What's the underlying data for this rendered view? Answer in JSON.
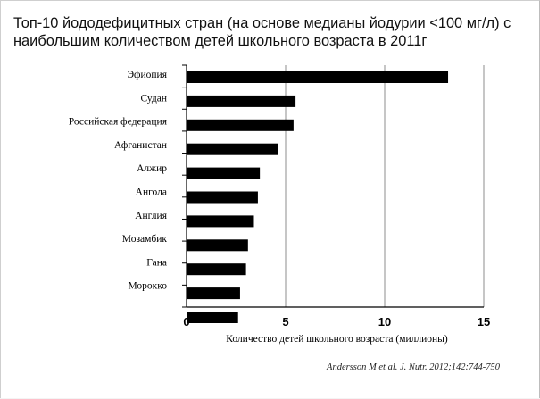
{
  "slide": {
    "title_line1": "Топ-10 йододефицитных стран (на основе медианы йодурии <100 мг/л) с",
    "title_line2": "наибольшим количеством детей школьного возраста в 2011г",
    "source": "Andersson M et al. J. Nutr. 2012;142:744-750"
  },
  "chart_data": {
    "type": "bar",
    "orientation": "horizontal",
    "title": "",
    "xlabel": "Количество детей школьного возраста (миллионы)",
    "ylabel": "",
    "xlim": [
      0,
      15
    ],
    "x_ticks": [
      0,
      5,
      10,
      15
    ],
    "grid": "vertical",
    "categories": [
      "Эфиопия",
      "Судан",
      "Российская федерация",
      "Афганистан",
      "Алжир",
      "Ангола",
      "Англия",
      "Мозамбик",
      "Гана",
      "Марокко"
    ],
    "category_labels": [
      "Эфиопия",
      "Судан",
      "Российская федерация",
      "Афганистан",
      "Алжир",
      "Ангола",
      "Англия",
      "Мозамбик",
      "Гана",
      "Морокко"
    ],
    "values": [
      13.2,
      5.5,
      5.4,
      4.6,
      3.7,
      3.6,
      3.4,
      3.1,
      3.0,
      2.7
    ],
    "extra_bar_values": [
      2.6
    ],
    "bar_color": "#000000"
  }
}
